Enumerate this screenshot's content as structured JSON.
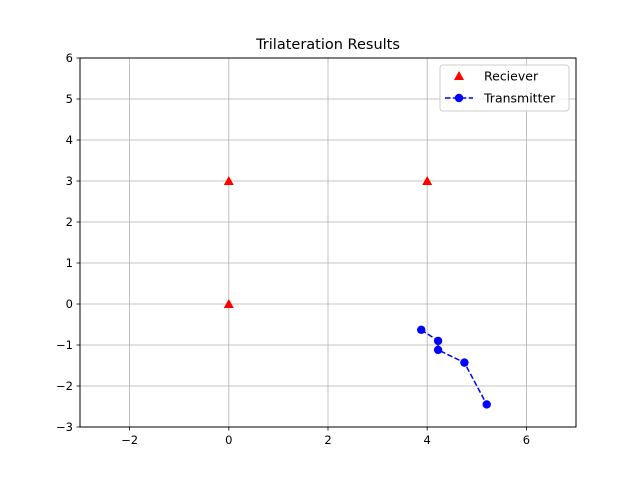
{
  "chart_data": {
    "type": "scatter",
    "title": "Trilateration Results",
    "xlabel": "",
    "ylabel": "",
    "xlim": [
      -3,
      7
    ],
    "ylim": [
      -3,
      6
    ],
    "xticks": [
      -2,
      0,
      2,
      4,
      6
    ],
    "yticks": [
      -3,
      -2,
      -1,
      0,
      1,
      2,
      3,
      4,
      5,
      6
    ],
    "xtick_labels": [
      "−2",
      "0",
      "2",
      "4",
      "6"
    ],
    "ytick_labels": [
      "−3",
      "−2",
      "−1",
      "0",
      "1",
      "2",
      "3",
      "4",
      "5",
      "6"
    ],
    "grid": true,
    "legend_position": "top-right",
    "series": [
      {
        "name": "Reciever",
        "marker": "triangle",
        "line": "none",
        "color": "#ff0000",
        "points": [
          [
            0,
            3
          ],
          [
            4,
            3
          ],
          [
            0,
            0
          ]
        ]
      },
      {
        "name": "Transmitter",
        "marker": "circle",
        "line": "dashed",
        "color": "#0000ff",
        "points": [
          [
            3.88,
            -0.63
          ],
          [
            4.22,
            -0.9
          ],
          [
            4.22,
            -1.12
          ],
          [
            4.75,
            -1.43
          ],
          [
            5.2,
            -2.45
          ]
        ]
      }
    ]
  }
}
